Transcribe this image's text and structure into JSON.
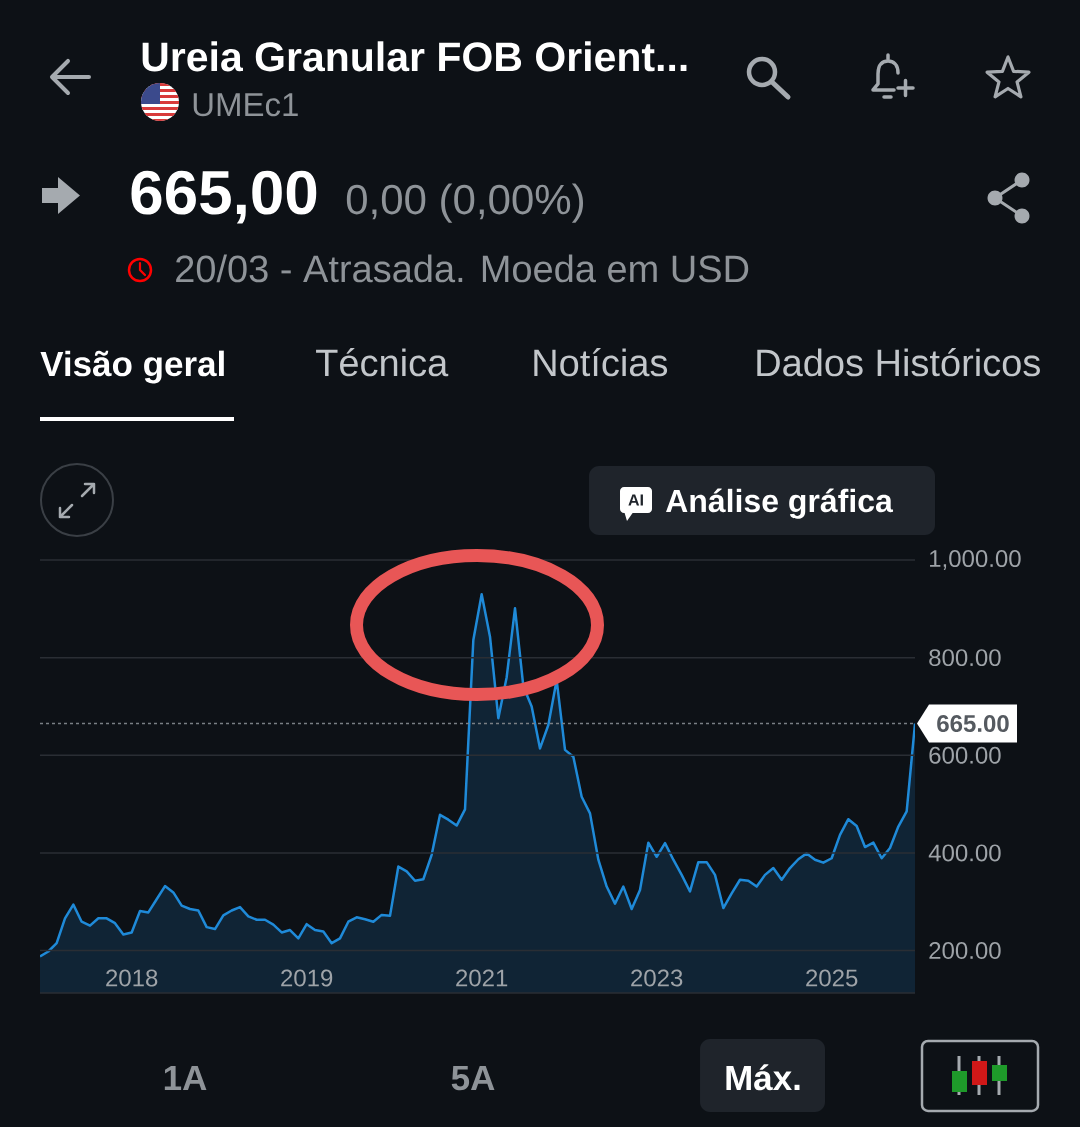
{
  "chart_data": {
    "type": "area",
    "title": "Ureia Granular FOB Orient...",
    "subtitle": "UMEc1",
    "annotations": [
      "665,00",
      "0,00 (0,00%)",
      "20/03 - Atrasada. Moeda em USD",
      "Visão geral",
      "Técnica",
      "Notícias",
      "Dados Históricos",
      "Análise gráfica",
      "AI",
      "1A",
      "5A",
      "Máx."
    ],
    "categories": [
      null,
      null,
      null,
      null,
      null,
      null,
      null,
      null,
      null,
      null,
      null,
      "2018",
      null,
      null,
      null,
      null,
      null,
      null,
      null,
      null,
      null,
      null,
      null,
      null,
      null,
      null,
      null,
      null,
      null,
      null,
      null,
      null,
      "2019",
      null,
      null,
      null,
      null,
      null,
      null,
      null,
      null,
      null,
      null,
      null,
      null,
      null,
      null,
      null,
      null,
      null,
      null,
      null,
      null,
      "2021",
      null,
      null,
      null,
      null,
      null,
      null,
      null,
      null,
      null,
      null,
      null,
      null,
      null,
      null,
      null,
      null,
      null,
      null,
      null,
      null,
      "2023",
      null,
      null,
      null,
      null,
      null,
      null,
      null,
      null,
      null,
      null,
      null,
      null,
      null,
      null,
      null,
      null,
      null,
      null,
      null,
      null,
      "2025",
      null,
      null,
      null,
      null,
      null,
      null,
      null,
      null,
      null,
      null
    ],
    "values": [
      188,
      198,
      215,
      266,
      294,
      259,
      251,
      266,
      266,
      256,
      233,
      237,
      281,
      278,
      305,
      332,
      319,
      292,
      285,
      282,
      248,
      244,
      272,
      282,
      289,
      270,
      263,
      263,
      253,
      237,
      242,
      225,
      254,
      242,
      239,
      215,
      225,
      259,
      268,
      264,
      259,
      273,
      271,
      372,
      362,
      343,
      346,
      396,
      478,
      468,
      456,
      489,
      836,
      930,
      843,
      676,
      760,
      901,
      741,
      700,
      614,
      662,
      754,
      611,
      597,
      515,
      481,
      386,
      331,
      296,
      331,
      285,
      324,
      421,
      392,
      420,
      386,
      355,
      321,
      381,
      381,
      355,
      287,
      317,
      345,
      343,
      331,
      355,
      369,
      345,
      369,
      387,
      399,
      386,
      380,
      389,
      437,
      469,
      455,
      412,
      421,
      389,
      410,
      454,
      485,
      665
    ],
    "color": "#1f8ad8",
    "ylim": [
      113,
      1000
    ],
    "yticks": [
      {
        "value": 200,
        "label": "200.00"
      },
      {
        "value": 400,
        "label": "400.00"
      },
      {
        "value": 600,
        "label": "600.00"
      },
      {
        "value": 800,
        "label": "800.00"
      },
      {
        "value": 1000,
        "label": "1,000.00"
      }
    ],
    "grid": "y",
    "ref_lines": [
      {
        "axis": "y",
        "value": 665,
        "label": "665.00",
        "color": "#7a7f85",
        "line_style": "dashed"
      }
    ]
  }
}
